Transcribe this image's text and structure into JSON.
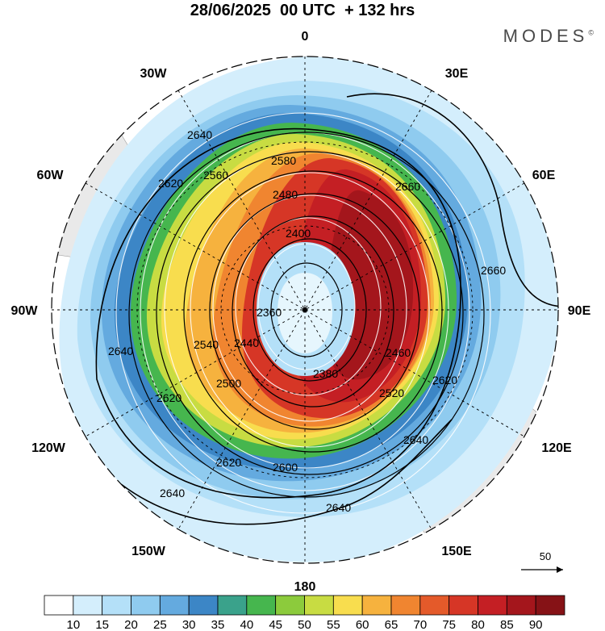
{
  "header": {
    "title": "28/06/2025  00 UTC  + 132 hrs",
    "brand": "MODES",
    "brand_mark": "©"
  },
  "map": {
    "projection": "south-polar-stereographic",
    "longitude_labels": [
      {
        "name": "0",
        "text": "0"
      },
      {
        "name": "30e",
        "text": "30E"
      },
      {
        "name": "60e",
        "text": "60E"
      },
      {
        "name": "90e",
        "text": "90E"
      },
      {
        "name": "120e",
        "text": "120E"
      },
      {
        "name": "150e",
        "text": "150E"
      },
      {
        "name": "180",
        "text": "180"
      },
      {
        "name": "150w",
        "text": "150W"
      },
      {
        "name": "120w",
        "text": "120W"
      },
      {
        "name": "90w",
        "text": "90W"
      },
      {
        "name": "60w",
        "text": "60W"
      },
      {
        "name": "30w",
        "text": "30W"
      }
    ],
    "height_contours": {
      "labels": [
        "2640",
        "2620",
        "2580",
        "2560",
        "2480",
        "2540",
        "2500",
        "2400",
        "2440",
        "2360",
        "2380",
        "2460",
        "2520",
        "2600",
        "2660"
      ]
    },
    "reference_vector": {
      "label": "50",
      "color": "#000000"
    },
    "land_color": "#e9e9e9"
  },
  "colorbar": {
    "ticks": [
      "10",
      "15",
      "20",
      "25",
      "30",
      "35",
      "40",
      "45",
      "50",
      "55",
      "60",
      "65",
      "70",
      "75",
      "80",
      "85",
      "90"
    ],
    "colors": [
      "#ffffff",
      "#d4eefc",
      "#b4e0f8",
      "#8fcbef",
      "#64aadf",
      "#3c86c6",
      "#3aa28b",
      "#46b64e",
      "#8ccb3c",
      "#c8dc42",
      "#f8dd4e",
      "#f6b23e",
      "#f08530",
      "#e45a2a",
      "#d63626",
      "#c41f24",
      "#a4161c",
      "#861216"
    ]
  }
}
